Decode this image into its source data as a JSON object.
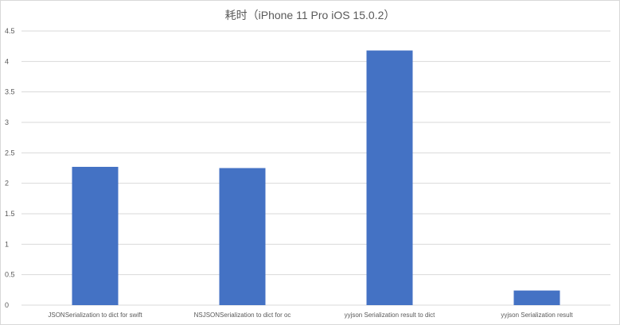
{
  "chart_data": {
    "type": "bar",
    "title": "耗时（iPhone 11 Pro iOS 15.0.2）",
    "xlabel": "",
    "ylabel": "",
    "categories": [
      "JSONSerialization to dict for swift",
      "NSJSONSerialization to dict for oc",
      "yyjson Serialization result to dict",
      "yyjson Serialization result"
    ],
    "values": [
      2.27,
      2.25,
      4.18,
      0.24
    ],
    "ylim": [
      0,
      4.5
    ],
    "yticks": [
      "0",
      "0.5",
      "1",
      "1.5",
      "2",
      "2.5",
      "3",
      "3.5",
      "4",
      "4.5"
    ],
    "grid": true,
    "legend": "none",
    "colors": {
      "bar": "#4472C4",
      "grid": "#d9d9d9",
      "text": "#595959"
    }
  }
}
